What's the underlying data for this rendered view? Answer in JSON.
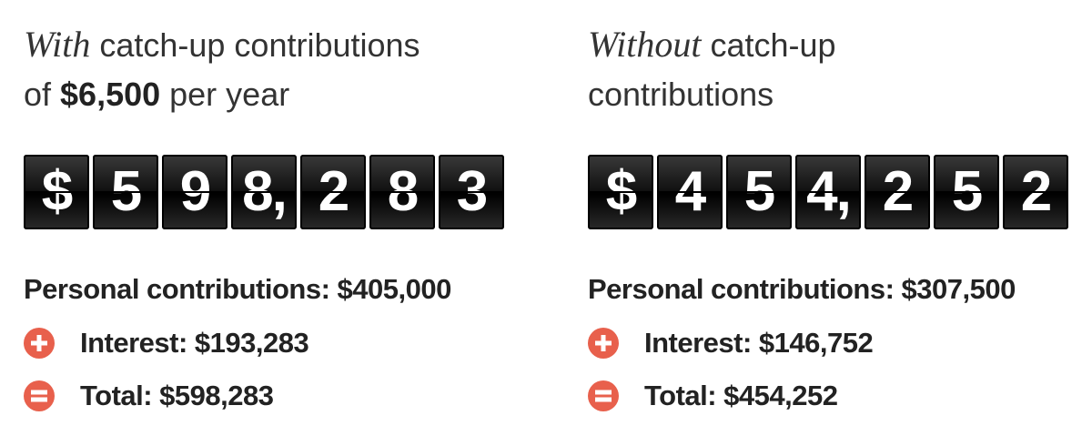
{
  "panels": [
    {
      "heading": {
        "emphasis": "With",
        "rest": " catch-up contributions",
        "line2_start": "of ",
        "amount": "$6,500",
        "line2_end": " per year"
      },
      "tiles": [
        "$",
        "5",
        "9",
        "8,",
        "2",
        "8",
        "3"
      ],
      "lines": [
        "Personal contributions: $405,000",
        "Interest: $193,283",
        "Total: $598,283"
      ]
    },
    {
      "heading": {
        "emphasis": "Without",
        "rest": " catch-up",
        "line2_start": "contributions"
      },
      "tiles": [
        "$",
        "4",
        "5",
        "4,",
        "2",
        "5",
        "2"
      ],
      "lines": [
        "Personal contributions: $307,500",
        "Interest: $146,752",
        "Total: $454,252"
      ]
    }
  ]
}
